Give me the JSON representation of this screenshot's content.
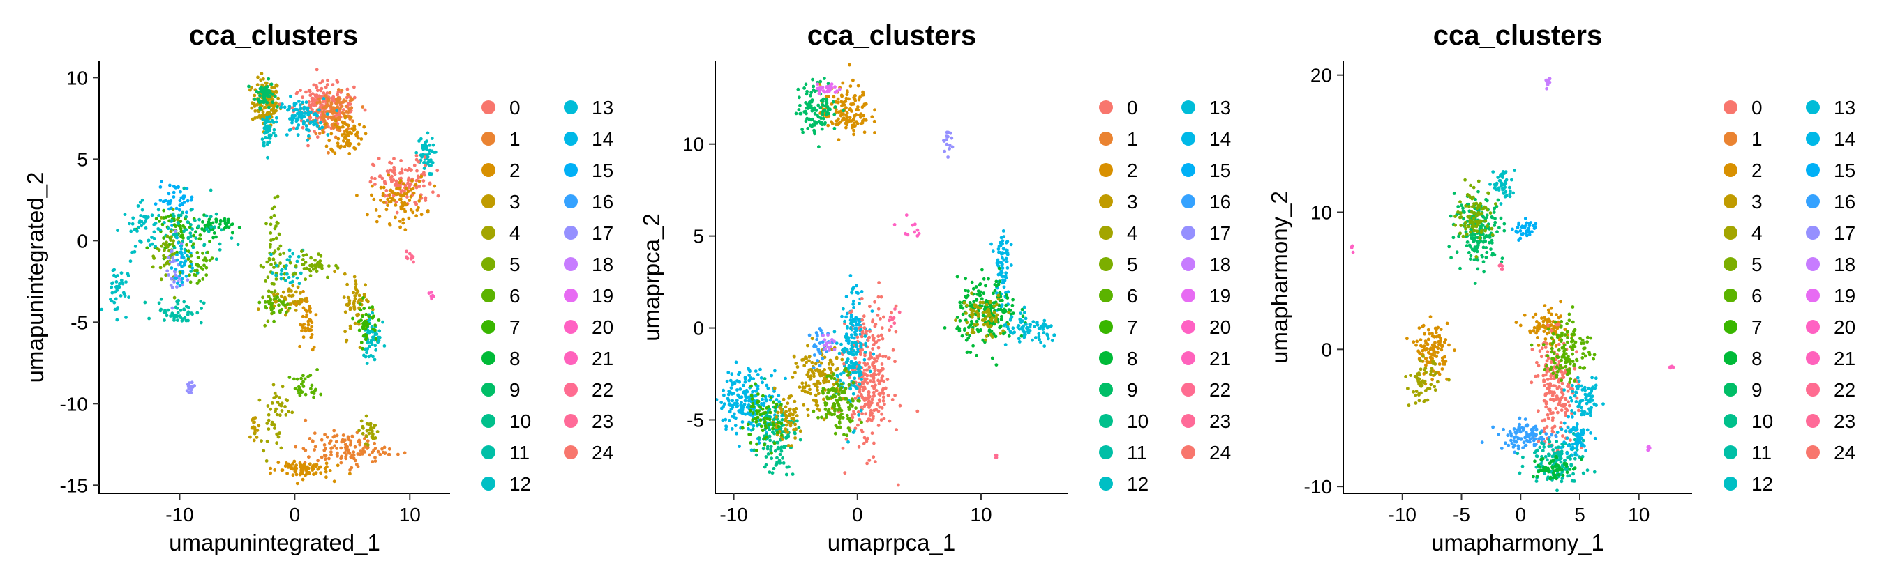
{
  "cluster_colors": {
    "0": "#F8766D",
    "1": "#EA8331",
    "2": "#D89000",
    "3": "#C09B00",
    "4": "#A3A500",
    "5": "#7CAE00",
    "6": "#5BB300",
    "7": "#39B600",
    "8": "#00BA38",
    "9": "#00BE67",
    "10": "#00C08B",
    "11": "#00BFA6",
    "12": "#00BFC4",
    "13": "#00BCD8",
    "14": "#00B8E7",
    "15": "#00B0F6",
    "16": "#35A2FF",
    "17": "#9590FF",
    "18": "#C77CFF",
    "19": "#E76BF3",
    "20": "#FF61C3",
    "21": "#FF62BC",
    "22": "#FF6C91",
    "23": "#FF6A98",
    "24": "#F8766D"
  },
  "chart_data": [
    {
      "type": "scatter",
      "title": "cca_clusters",
      "xlabel": "umapunintegrated_1",
      "ylabel": "umapunintegrated_2",
      "xlim": [
        -17,
        13.5
      ],
      "ylim": [
        -15.5,
        11
      ],
      "xticks": [
        -10,
        0,
        10
      ],
      "yticks": [
        -15,
        -10,
        -5,
        0,
        5,
        10
      ],
      "grid": false,
      "legend": {
        "placement": "right",
        "title": "",
        "entries": [
          "0",
          "1",
          "2",
          "3",
          "4",
          "5",
          "6",
          "7",
          "8",
          "9",
          "10",
          "11",
          "12",
          "13",
          "14",
          "15",
          "16",
          "17",
          "18",
          "19",
          "20",
          "21",
          "22",
          "23",
          "24"
        ]
      },
      "clusters": [
        {
          "label": "3",
          "cx": -2.5,
          "cy": 8.5,
          "sx": 0.6,
          "sy": 0.7,
          "n": 140
        },
        {
          "label": "9",
          "cx": -2.6,
          "cy": 9.0,
          "sx": 0.4,
          "sy": 0.4,
          "n": 60
        },
        {
          "label": "0",
          "cx": 2.5,
          "cy": 8.2,
          "sx": 1.3,
          "sy": 0.7,
          "n": 200
        },
        {
          "label": "1",
          "cx": 3.5,
          "cy": 7.8,
          "sx": 1.0,
          "sy": 0.6,
          "n": 130
        },
        {
          "label": "13",
          "cx": 0.5,
          "cy": 7.5,
          "sx": 1.0,
          "sy": 0.6,
          "n": 90
        },
        {
          "label": "12",
          "cx": -2.3,
          "cy": 6.8,
          "sx": 0.3,
          "sy": 0.6,
          "n": 50
        },
        {
          "label": "2",
          "cx": 4.5,
          "cy": 6.5,
          "sx": 0.7,
          "sy": 0.6,
          "n": 70
        },
        {
          "label": "12",
          "cx": 11.3,
          "cy": 5.2,
          "sx": 0.4,
          "sy": 0.6,
          "n": 50
        },
        {
          "label": "0",
          "cx": 9.5,
          "cy": 3.5,
          "sx": 1.3,
          "sy": 0.8,
          "n": 120
        },
        {
          "label": "2",
          "cx": 9.0,
          "cy": 2.5,
          "sx": 1.2,
          "sy": 0.7,
          "n": 90
        },
        {
          "label": "15",
          "cx": -10.3,
          "cy": 2.5,
          "sx": 0.8,
          "sy": 0.5,
          "n": 40
        },
        {
          "label": "7",
          "cx": -10.0,
          "cy": 0.6,
          "sx": 1.0,
          "sy": 0.6,
          "n": 60
        },
        {
          "label": "12",
          "cx": -13.0,
          "cy": 0.8,
          "sx": 1.0,
          "sy": 0.7,
          "n": 50
        },
        {
          "label": "8",
          "cx": -7.0,
          "cy": 0.9,
          "sx": 0.8,
          "sy": 0.3,
          "n": 50
        },
        {
          "label": "11",
          "cx": -9.0,
          "cy": 0.5,
          "sx": 1.5,
          "sy": 1.0,
          "n": 60
        },
        {
          "label": "5",
          "cx": -11.0,
          "cy": -1.0,
          "sx": 0.5,
          "sy": 1.0,
          "n": 45
        },
        {
          "label": "17",
          "cx": -10.5,
          "cy": -2.0,
          "sx": 0.4,
          "sy": 1.0,
          "n": 30
        },
        {
          "label": "14",
          "cx": -9.8,
          "cy": -1.5,
          "sx": 0.4,
          "sy": 0.9,
          "n": 35
        },
        {
          "label": "6",
          "cx": -8.5,
          "cy": -1.5,
          "sx": 0.6,
          "sy": 0.5,
          "n": 35
        },
        {
          "label": "11",
          "cx": -10.0,
          "cy": -4.3,
          "sx": 1.0,
          "sy": 0.4,
          "n": 50
        },
        {
          "label": "12",
          "cx": -15.5,
          "cy": -3.0,
          "sx": 0.5,
          "sy": 0.8,
          "n": 40
        },
        {
          "label": "5",
          "cx": -2.0,
          "cy": -1.5,
          "sx": 0.4,
          "sy": 2.0,
          "n": 60
        },
        {
          "label": "12",
          "cx": -0.5,
          "cy": -1.8,
          "sx": 0.6,
          "sy": 0.6,
          "n": 30
        },
        {
          "label": "5",
          "cx": 1.5,
          "cy": -1.5,
          "sx": 1.0,
          "sy": 0.4,
          "n": 45
        },
        {
          "label": "3",
          "cx": -0.5,
          "cy": -3.6,
          "sx": 0.8,
          "sy": 0.4,
          "n": 45
        },
        {
          "label": "6",
          "cx": -1.5,
          "cy": -4.0,
          "sx": 0.6,
          "sy": 0.4,
          "n": 30
        },
        {
          "label": "2",
          "cx": 1.0,
          "cy": -4.8,
          "sx": 0.5,
          "sy": 1.0,
          "n": 40
        },
        {
          "label": "3",
          "cx": 5.5,
          "cy": -4.0,
          "sx": 0.6,
          "sy": 1.0,
          "n": 60
        },
        {
          "label": "12",
          "cx": 6.7,
          "cy": -5.8,
          "sx": 0.4,
          "sy": 0.8,
          "n": 60
        },
        {
          "label": "7",
          "cx": 6.2,
          "cy": -5.0,
          "sx": 0.5,
          "sy": 0.6,
          "n": 40
        },
        {
          "label": "22",
          "cx": 10.0,
          "cy": -1.1,
          "sx": 0.2,
          "sy": 0.2,
          "n": 10
        },
        {
          "label": "21",
          "cx": 11.8,
          "cy": -3.3,
          "sx": 0.2,
          "sy": 0.2,
          "n": 6
        },
        {
          "label": "17",
          "cx": -9.1,
          "cy": -9.0,
          "sx": 0.3,
          "sy": 0.2,
          "n": 20
        },
        {
          "label": "4",
          "cx": -1.8,
          "cy": -10.5,
          "sx": 0.6,
          "sy": 1.0,
          "n": 45
        },
        {
          "label": "6",
          "cx": 1.0,
          "cy": -9.0,
          "sx": 0.6,
          "sy": 0.4,
          "n": 30
        },
        {
          "label": "3",
          "cx": -3.5,
          "cy": -11.5,
          "sx": 0.2,
          "sy": 0.5,
          "n": 15
        },
        {
          "label": "1",
          "cx": 4.5,
          "cy": -12.8,
          "sx": 1.8,
          "sy": 0.5,
          "n": 120
        },
        {
          "label": "2",
          "cx": 0.5,
          "cy": -14.0,
          "sx": 1.3,
          "sy": 0.3,
          "n": 80
        },
        {
          "label": "4",
          "cx": 6.5,
          "cy": -11.6,
          "sx": 0.4,
          "sy": 0.4,
          "n": 30
        }
      ]
    },
    {
      "type": "scatter",
      "title": "cca_clusters",
      "xlabel": "umaprpca_1",
      "ylabel": "umaprpca_2",
      "xlim": [
        -11.5,
        17
      ],
      "ylim": [
        -9,
        14.5
      ],
      "xticks": [
        -10,
        0,
        10
      ],
      "yticks": [
        -5,
        0,
        5,
        10
      ],
      "grid": false,
      "legend": {
        "placement": "right",
        "title": "",
        "entries": [
          "0",
          "1",
          "2",
          "3",
          "4",
          "5",
          "6",
          "7",
          "8",
          "9",
          "10",
          "11",
          "12",
          "13",
          "14",
          "15",
          "16",
          "17",
          "18",
          "19",
          "20",
          "21",
          "22",
          "23",
          "24"
        ]
      },
      "clusters": [
        {
          "label": "2",
          "cx": -1.0,
          "cy": 11.8,
          "sx": 1.0,
          "sy": 0.7,
          "n": 140
        },
        {
          "label": "9",
          "cx": -3.2,
          "cy": 12.0,
          "sx": 0.8,
          "sy": 0.7,
          "n": 110
        },
        {
          "label": "19",
          "cx": -2.5,
          "cy": 13.0,
          "sx": 0.5,
          "sy": 0.2,
          "n": 25
        },
        {
          "label": "17",
          "cx": 7.2,
          "cy": 10.2,
          "sx": 0.2,
          "sy": 0.3,
          "n": 15
        },
        {
          "label": "20",
          "cx": 4.2,
          "cy": 5.4,
          "sx": 0.5,
          "sy": 0.3,
          "n": 10
        },
        {
          "label": "14",
          "cx": 11.7,
          "cy": 3.5,
          "sx": 0.3,
          "sy": 1.2,
          "n": 70
        },
        {
          "label": "8",
          "cx": 10.5,
          "cy": 0.8,
          "sx": 1.2,
          "sy": 0.9,
          "n": 200
        },
        {
          "label": "13",
          "cx": 14.0,
          "cy": -0.2,
          "sx": 1.2,
          "sy": 0.4,
          "n": 80
        },
        {
          "label": "4",
          "cx": 10.2,
          "cy": 0.6,
          "sx": 0.9,
          "sy": 0.6,
          "n": 70
        },
        {
          "label": "14",
          "cx": -0.3,
          "cy": 0.3,
          "sx": 0.5,
          "sy": 1.0,
          "n": 80
        },
        {
          "label": "0",
          "cx": 1.0,
          "cy": -2.8,
          "sx": 0.9,
          "sy": 1.9,
          "n": 280
        },
        {
          "label": "13",
          "cx": -0.5,
          "cy": -2.0,
          "sx": 0.6,
          "sy": 1.5,
          "n": 110
        },
        {
          "label": "3",
          "cx": -3.2,
          "cy": -2.8,
          "sx": 0.9,
          "sy": 0.9,
          "n": 130
        },
        {
          "label": "6",
          "cx": -1.5,
          "cy": -4.0,
          "sx": 0.8,
          "sy": 0.8,
          "n": 110
        },
        {
          "label": "16",
          "cx": -3.0,
          "cy": -1.0,
          "sx": 0.4,
          "sy": 0.5,
          "n": 30
        },
        {
          "label": "18",
          "cx": -2.3,
          "cy": -0.8,
          "sx": 0.3,
          "sy": 0.3,
          "n": 15
        },
        {
          "label": "14",
          "cx": -8.8,
          "cy": -4.0,
          "sx": 1.2,
          "sy": 0.9,
          "n": 200
        },
        {
          "label": "10",
          "cx": -6.5,
          "cy": -5.8,
          "sx": 0.8,
          "sy": 1.0,
          "n": 130
        },
        {
          "label": "3",
          "cx": -5.8,
          "cy": -5.0,
          "sx": 0.6,
          "sy": 0.6,
          "n": 60
        },
        {
          "label": "7",
          "cx": -7.8,
          "cy": -5.0,
          "sx": 0.8,
          "sy": 0.7,
          "n": 70
        },
        {
          "label": "23",
          "cx": 3.0,
          "cy": 0.4,
          "sx": 0.3,
          "sy": 0.3,
          "n": 8
        },
        {
          "label": "22",
          "cx": 11.2,
          "cy": -7.0,
          "sx": 0.1,
          "sy": 0.1,
          "n": 4
        }
      ]
    },
    {
      "type": "scatter",
      "title": "cca_clusters",
      "xlabel": "umapharmony_1",
      "ylabel": "umapharmony_2",
      "xlim": [
        -15,
        14.5
      ],
      "ylim": [
        -10.5,
        21
      ],
      "xticks": [
        -10,
        -5,
        0,
        5,
        10
      ],
      "yticks": [
        -10,
        0,
        10,
        20
      ],
      "grid": false,
      "legend": {
        "placement": "right",
        "title": "",
        "entries": [
          "0",
          "1",
          "2",
          "3",
          "4",
          "5",
          "6",
          "7",
          "8",
          "9",
          "10",
          "11",
          "12",
          "13",
          "14",
          "15",
          "16",
          "17",
          "18",
          "19",
          "20",
          "21",
          "22",
          "23",
          "24"
        ]
      },
      "clusters": [
        {
          "label": "18",
          "cx": 2.3,
          "cy": 19.5,
          "sx": 0.1,
          "sy": 0.3,
          "n": 10
        },
        {
          "label": "9",
          "cx": -3.5,
          "cy": 8.8,
          "sx": 1.0,
          "sy": 1.2,
          "n": 180
        },
        {
          "label": "5",
          "cx": -3.8,
          "cy": 9.8,
          "sx": 0.8,
          "sy": 0.9,
          "n": 90
        },
        {
          "label": "12",
          "cx": -1.5,
          "cy": 12.0,
          "sx": 0.4,
          "sy": 0.6,
          "n": 45
        },
        {
          "label": "15",
          "cx": 0.5,
          "cy": 8.7,
          "sx": 0.5,
          "sy": 0.4,
          "n": 40
        },
        {
          "label": "2",
          "cx": -7.5,
          "cy": 0.0,
          "sx": 0.7,
          "sy": 0.9,
          "n": 110
        },
        {
          "label": "4",
          "cx": -8.2,
          "cy": -2.5,
          "sx": 0.6,
          "sy": 0.8,
          "n": 60
        },
        {
          "label": "2",
          "cx": 2.3,
          "cy": 1.5,
          "sx": 0.9,
          "sy": 0.6,
          "n": 90
        },
        {
          "label": "0",
          "cx": 3.0,
          "cy": -3.0,
          "sx": 0.9,
          "sy": 2.0,
          "n": 200
        },
        {
          "label": "6",
          "cx": 4.0,
          "cy": 0.0,
          "sx": 1.0,
          "sy": 1.2,
          "n": 120
        },
        {
          "label": "13",
          "cx": 5.5,
          "cy": -3.8,
          "sx": 0.6,
          "sy": 0.7,
          "n": 70
        },
        {
          "label": "16",
          "cx": 0.5,
          "cy": -6.3,
          "sx": 1.2,
          "sy": 0.5,
          "n": 90
        },
        {
          "label": "11",
          "cx": 3.0,
          "cy": -8.0,
          "sx": 1.2,
          "sy": 0.8,
          "n": 120
        },
        {
          "label": "8",
          "cx": 2.5,
          "cy": -8.6,
          "sx": 0.8,
          "sy": 0.5,
          "n": 60
        },
        {
          "label": "14",
          "cx": 4.5,
          "cy": -6.5,
          "sx": 0.7,
          "sy": 0.7,
          "n": 60
        },
        {
          "label": "20",
          "cx": -14.3,
          "cy": 7.3,
          "sx": 0.1,
          "sy": 0.2,
          "n": 4
        },
        {
          "label": "21",
          "cx": 12.8,
          "cy": -1.2,
          "sx": 0.1,
          "sy": 0.1,
          "n": 4
        },
        {
          "label": "19",
          "cx": 10.8,
          "cy": -7.2,
          "sx": 0.1,
          "sy": 0.1,
          "n": 5
        },
        {
          "label": "23",
          "cx": -1.5,
          "cy": 6.0,
          "sx": 0.2,
          "sy": 0.2,
          "n": 6
        }
      ]
    }
  ]
}
